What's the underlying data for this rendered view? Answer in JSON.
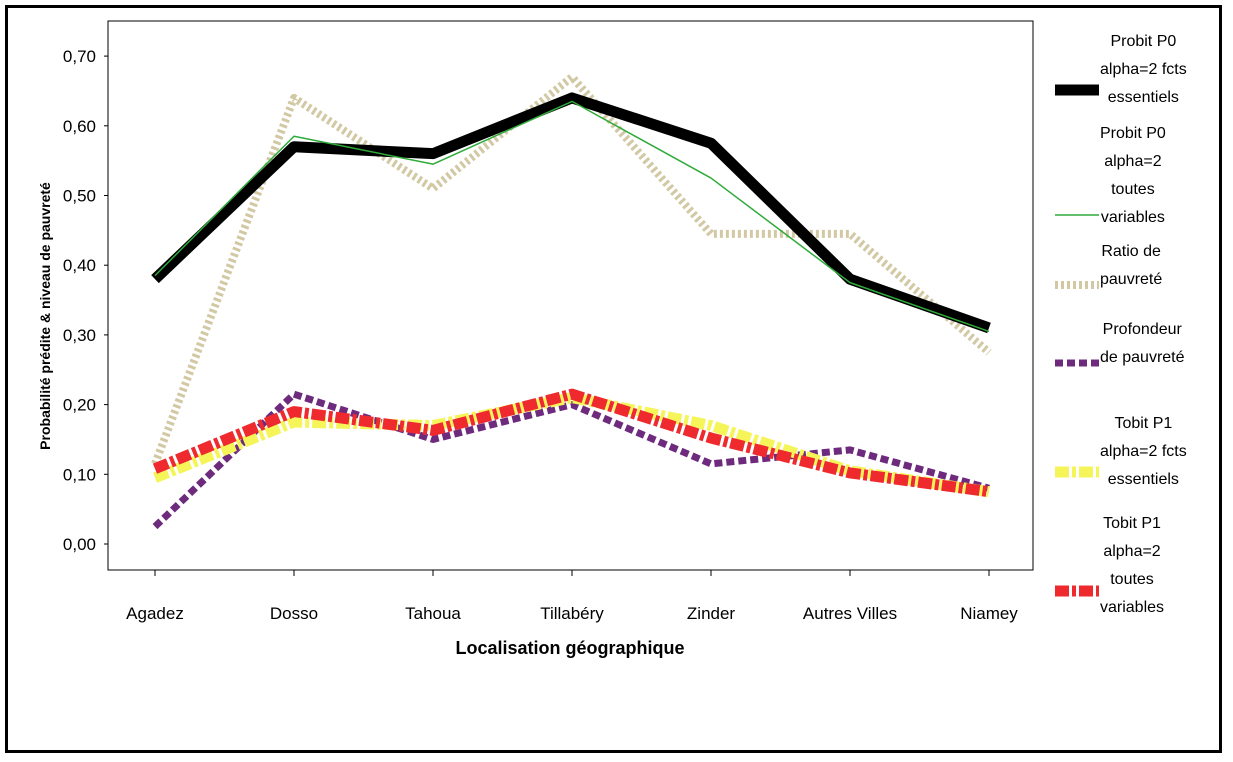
{
  "chart_data": {
    "type": "line",
    "categories": [
      "Agadez",
      "Dosso",
      "Tahoua",
      "Tillabéry",
      "Zinder",
      "Autres Villes",
      "Niamey"
    ],
    "xlabel": "Localisation géographique",
    "ylabel": "Probabilité prédite & niveau de pauvreté",
    "ylim": [
      0,
      0.7
    ],
    "yticks": [
      "0,00",
      "0,10",
      "0,20",
      "0,30",
      "0,40",
      "0,50",
      "0,60",
      "0,70"
    ],
    "legend_position": "right",
    "series": [
      {
        "name": "Probit P0 alpha=2 fcts essentiels",
        "color": "#000000",
        "style": "thick-solid",
        "values": [
          0.38,
          0.57,
          0.56,
          0.64,
          0.575,
          0.38,
          0.31
        ]
      },
      {
        "name": "Probit P0 alpha=2 toutes variables",
        "color": "#2eaa3a",
        "style": "thin-solid",
        "values": [
          0.385,
          0.585,
          0.545,
          0.635,
          0.525,
          0.375,
          0.305
        ]
      },
      {
        "name": "Ratio de pauvreté",
        "color": "#d2c9a4",
        "style": "dotted-thick",
        "values": [
          0.115,
          0.64,
          0.51,
          0.67,
          0.445,
          0.445,
          0.275
        ]
      },
      {
        "name": "Profondeur de pauvreté",
        "color": "#6e2b7e",
        "style": "dashed",
        "values": [
          0.025,
          0.215,
          0.15,
          0.2,
          0.115,
          0.135,
          0.08
        ]
      },
      {
        "name": "Tobit P1 alpha=2 fcts essentiels",
        "color": "#f5f55a",
        "style": "dashdot",
        "values": [
          0.095,
          0.175,
          0.17,
          0.21,
          0.17,
          0.105,
          0.075
        ]
      },
      {
        "name": "Tobit P1 alpha=2 toutes variables",
        "color": "#ee2a2f",
        "style": "dashdot",
        "values": [
          0.108,
          0.19,
          0.163,
          0.215,
          0.152,
          0.102,
          0.075
        ]
      }
    ]
  },
  "legend": [
    {
      "lines": [
        "Probit P0",
        "alpha=2 fcts",
        "essentiels"
      ]
    },
    {
      "lines": [
        "Probit P0",
        "alpha=2",
        "toutes",
        "variables"
      ]
    },
    {
      "lines": [
        "Ratio de",
        "pauvreté"
      ]
    },
    {
      "lines": [
        "Profondeur",
        "de pauvreté"
      ]
    },
    {
      "lines": [
        "Tobit P1",
        "alpha=2 fcts",
        "essentiels"
      ]
    },
    {
      "lines": [
        "Tobit P1",
        "alpha=2",
        "toutes",
        "variables"
      ]
    }
  ]
}
